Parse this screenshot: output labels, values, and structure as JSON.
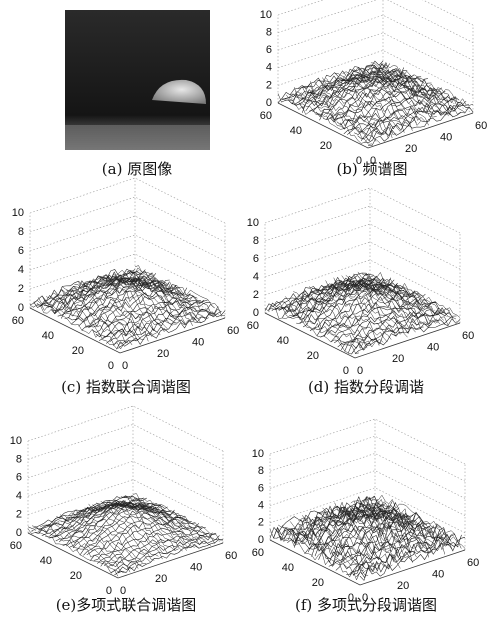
{
  "panels": [
    {
      "caption": "(a) 原图像"
    },
    {
      "caption": "(b) 频谱图",
      "zticks": [
        0,
        2,
        4,
        6,
        8,
        10
      ],
      "xticks": [
        0,
        20,
        40,
        60
      ],
      "yticks": [
        60,
        40,
        20,
        0
      ]
    },
    {
      "caption": "(c) 指数联合调谐图",
      "zticks": [
        0,
        2,
        4,
        6,
        8,
        10
      ],
      "xticks": [
        0,
        20,
        40,
        60
      ],
      "yticks": [
        60,
        40,
        20,
        0
      ]
    },
    {
      "caption": "(d) 指数分段调谐",
      "zticks": [
        0,
        2,
        4,
        6,
        8,
        10
      ],
      "xticks": [
        0,
        20,
        40,
        60
      ],
      "yticks": [
        60,
        40,
        20,
        0
      ]
    },
    {
      "caption": "(e)多项式联合调谐图",
      "zticks": [
        0,
        2,
        4,
        6,
        8,
        10
      ],
      "xticks": [
        0,
        20,
        40,
        60
      ],
      "yticks": [
        60,
        40,
        20,
        0
      ]
    },
    {
      "caption": "(f) 多项式分段调谐图",
      "zticks": [
        0,
        2,
        4,
        6,
        8,
        10
      ],
      "xticks": [
        0,
        20,
        40,
        60
      ],
      "yticks": [
        60,
        40,
        20,
        0
      ]
    }
  ]
}
